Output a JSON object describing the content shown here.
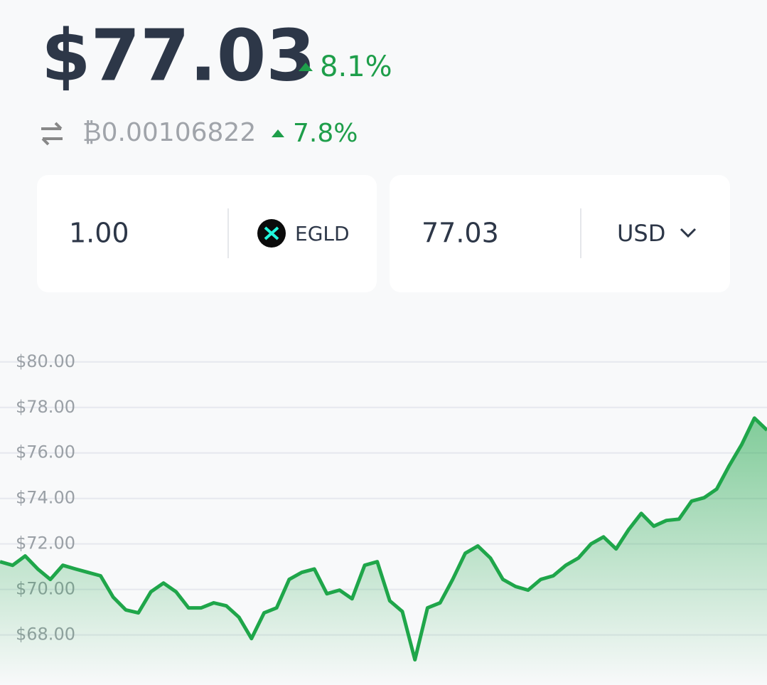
{
  "price": "$77.03",
  "price_change": "8.1%",
  "btc_price": "₿0.00106822",
  "btc_change": "7.8%",
  "converter": {
    "amount": "1.00",
    "token": "EGLD",
    "fiat_amount": "77.03",
    "fiat": "USD"
  },
  "chart_data": {
    "type": "area",
    "color": "#1fa64a",
    "values": [
      71.22,
      71.06,
      71.47,
      70.9,
      70.44,
      71.06,
      70.9,
      70.75,
      70.6,
      69.66,
      69.1,
      68.97,
      69.9,
      70.28,
      69.9,
      69.19,
      69.19,
      69.41,
      69.28,
      68.78,
      67.84,
      68.97,
      69.19,
      70.44,
      70.75,
      70.9,
      69.81,
      69.97,
      69.59,
      71.06,
      71.22,
      69.5,
      69.03,
      66.91,
      69.19,
      69.41,
      70.44,
      71.59,
      71.91,
      71.38,
      70.44,
      70.13,
      69.97,
      70.44,
      70.6,
      71.06,
      71.38,
      72.0,
      72.31,
      71.78,
      72.63,
      73.34,
      72.78,
      73.03,
      73.09,
      73.88,
      74.03,
      74.41,
      75.44,
      76.38,
      77.53,
      77.0
    ],
    "ylim": [
      65.8,
      80.9
    ],
    "yticks": [
      {
        "value": 68,
        "label": "$68.00"
      },
      {
        "value": 70,
        "label": "$70.00"
      },
      {
        "value": 72,
        "label": "$72.00"
      },
      {
        "value": 74,
        "label": "$74.00"
      },
      {
        "value": 76,
        "label": "$76.00"
      },
      {
        "value": 78,
        "label": "$78.00"
      },
      {
        "value": 80,
        "label": "$80.00"
      }
    ],
    "grid": true
  }
}
